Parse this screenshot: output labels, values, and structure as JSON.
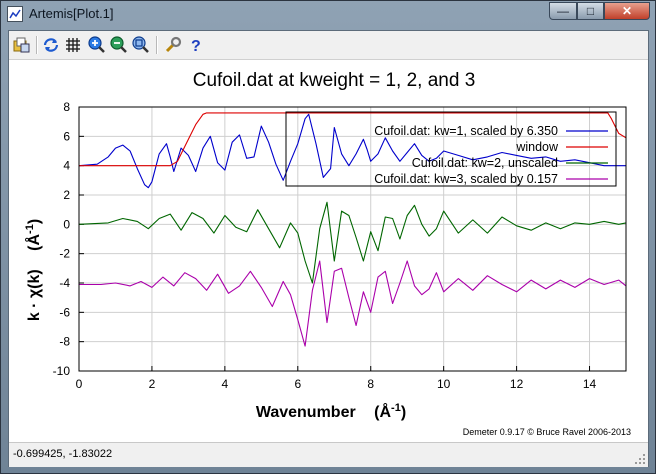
{
  "window": {
    "title": "Artemis[Plot.1]",
    "controls": {
      "minimize": "—",
      "maximize": "□",
      "close": "✕"
    }
  },
  "toolbar": {
    "buttons": [
      {
        "name": "open-icon"
      },
      {
        "name": "refresh-icon"
      },
      {
        "name": "grid-icon"
      },
      {
        "name": "zoom-in-icon"
      },
      {
        "name": "zoom-out-icon"
      },
      {
        "name": "zoom-reset-icon"
      },
      {
        "name": "settings-wrench-icon"
      },
      {
        "name": "help-icon"
      }
    ]
  },
  "status": {
    "coordinates": "-0.699425, -1.83022"
  },
  "chart_data": {
    "type": "line",
    "title": "Cufoil.dat at kweight = 1, 2, and 3",
    "xlabel": "Wavenumber",
    "xlabel_unit_base": "(Å",
    "xlabel_unit_exp": "-1",
    "xlabel_unit_close": ")",
    "ylabel": "k · χ(k)",
    "ylabel_unit_base": "(Å",
    "ylabel_unit_exp": "-1",
    "ylabel_unit_close": ")",
    "credit": "Demeter 0.9.17 © Bruce Ravel 2006-2013",
    "xlim": [
      0,
      15
    ],
    "ylim": [
      -10,
      8
    ],
    "xticks": [
      0,
      2,
      4,
      6,
      8,
      10,
      12,
      14
    ],
    "yticks": [
      -10,
      -8,
      -6,
      -4,
      -2,
      0,
      2,
      4,
      6,
      8
    ],
    "grid": true,
    "legend_position": "top-right",
    "series": [
      {
        "name": "Cufoil.dat: kw=1, scaled by 6.350",
        "color": "#0000cc",
        "x": [
          0,
          0.5,
          0.8,
          1.0,
          1.2,
          1.4,
          1.6,
          1.8,
          1.9,
          2.0,
          2.2,
          2.4,
          2.5,
          2.6,
          2.8,
          3.0,
          3.2,
          3.4,
          3.6,
          3.8,
          4.0,
          4.2,
          4.4,
          4.6,
          4.8,
          5.0,
          5.2,
          5.4,
          5.6,
          5.8,
          6.0,
          6.2,
          6.3,
          6.5,
          6.7,
          6.9,
          7.0,
          7.2,
          7.4,
          7.6,
          7.8,
          7.9,
          8.0,
          8.2,
          8.4,
          8.6,
          8.8,
          9.0,
          9.2,
          9.4,
          9.6,
          9.8,
          10.0,
          10.4,
          10.8,
          11.2,
          11.6,
          12.0,
          12.4,
          12.8,
          13.2,
          13.6,
          14.0,
          14.4,
          14.8,
          15.0
        ],
        "y": [
          4.0,
          4.1,
          4.6,
          5.2,
          5.4,
          5.0,
          3.8,
          2.7,
          2.5,
          2.9,
          4.8,
          5.5,
          4.6,
          3.6,
          5.2,
          4.7,
          3.6,
          5.2,
          6.0,
          4.2,
          3.7,
          5.6,
          6.1,
          4.5,
          4.6,
          6.7,
          5.6,
          4.1,
          3.0,
          4.3,
          5.5,
          7.2,
          7.5,
          5.5,
          3.2,
          3.8,
          6.6,
          4.8,
          4.0,
          4.8,
          5.8,
          5.1,
          4.3,
          4.8,
          5.9,
          5.0,
          4.3,
          4.9,
          5.5,
          4.7,
          4.3,
          4.5,
          5.0,
          4.7,
          4.4,
          4.6,
          4.9,
          4.7,
          4.5,
          4.6,
          4.3,
          4.4,
          4.2,
          4.0,
          4.0,
          4.0
        ]
      },
      {
        "name": "window",
        "color": "#dd0000",
        "x": [
          0,
          2.5,
          2.7,
          3.0,
          3.2,
          3.4,
          3.5,
          14.5,
          14.6,
          14.8,
          15.0
        ],
        "y": [
          4.0,
          4.0,
          4.3,
          5.8,
          6.8,
          7.5,
          7.6,
          7.6,
          7.2,
          6.2,
          5.9
        ]
      },
      {
        "name": "Cufoil.dat: kw=2, unscaled",
        "color": "#006600",
        "x": [
          0,
          0.8,
          1.2,
          1.6,
          1.9,
          2.2,
          2.5,
          2.8,
          3.1,
          3.4,
          3.7,
          4.0,
          4.3,
          4.6,
          4.9,
          5.2,
          5.5,
          5.8,
          6.0,
          6.2,
          6.4,
          6.6,
          6.8,
          7.0,
          7.2,
          7.4,
          7.6,
          7.8,
          8.0,
          8.2,
          8.4,
          8.6,
          8.8,
          9.0,
          9.2,
          9.4,
          9.6,
          9.8,
          10.0,
          10.4,
          10.8,
          11.2,
          11.6,
          12.0,
          12.4,
          12.8,
          13.2,
          13.6,
          14.0,
          14.4,
          14.8,
          15.0
        ],
        "y": [
          0.0,
          0.1,
          0.4,
          0.2,
          -0.3,
          0.4,
          0.7,
          -0.4,
          0.8,
          0.4,
          -0.6,
          0.6,
          -0.2,
          -0.5,
          1.0,
          -0.3,
          -1.6,
          0.1,
          -0.6,
          -2.5,
          -4.0,
          -0.3,
          1.5,
          -2.5,
          0.9,
          0.6,
          -0.9,
          -2.5,
          -0.5,
          -1.8,
          0.5,
          0.4,
          -1.0,
          0.6,
          1.3,
          0.0,
          -0.8,
          -0.3,
          0.9,
          -0.6,
          0.3,
          -0.6,
          0.5,
          -0.1,
          -0.4,
          0.1,
          -0.3,
          0.1,
          0.0,
          0.2,
          0.0,
          0.1
        ]
      },
      {
        "name": "Cufoil.dat: kw=3, scaled by 0.157",
        "color": "#aa00aa",
        "x": [
          0,
          0.6,
          1.0,
          1.4,
          1.7,
          2.0,
          2.3,
          2.6,
          2.9,
          3.2,
          3.5,
          3.8,
          4.1,
          4.4,
          4.7,
          5.0,
          5.3,
          5.6,
          5.8,
          6.0,
          6.2,
          6.4,
          6.6,
          6.8,
          7.0,
          7.2,
          7.4,
          7.6,
          7.8,
          8.0,
          8.2,
          8.4,
          8.6,
          8.8,
          9.0,
          9.2,
          9.4,
          9.6,
          9.8,
          10.0,
          10.4,
          10.8,
          11.2,
          11.6,
          12.0,
          12.4,
          12.8,
          13.2,
          13.6,
          14.0,
          14.4,
          14.8,
          15.0
        ],
        "y": [
          -4.1,
          -4.1,
          -4.0,
          -4.2,
          -3.9,
          -4.3,
          -3.6,
          -4.2,
          -3.3,
          -3.7,
          -4.5,
          -3.4,
          -4.7,
          -4.2,
          -3.2,
          -4.3,
          -5.6,
          -3.9,
          -4.8,
          -6.5,
          -8.3,
          -4.5,
          -2.5,
          -6.7,
          -3.2,
          -3.0,
          -5.0,
          -6.9,
          -4.6,
          -6.0,
          -3.6,
          -3.2,
          -5.4,
          -4.0,
          -2.5,
          -4.2,
          -4.8,
          -4.4,
          -3.3,
          -4.6,
          -3.7,
          -4.5,
          -3.5,
          -4.1,
          -4.6,
          -3.8,
          -4.4,
          -3.8,
          -4.3,
          -3.7,
          -4.1,
          -3.8,
          -4.2
        ]
      }
    ]
  }
}
